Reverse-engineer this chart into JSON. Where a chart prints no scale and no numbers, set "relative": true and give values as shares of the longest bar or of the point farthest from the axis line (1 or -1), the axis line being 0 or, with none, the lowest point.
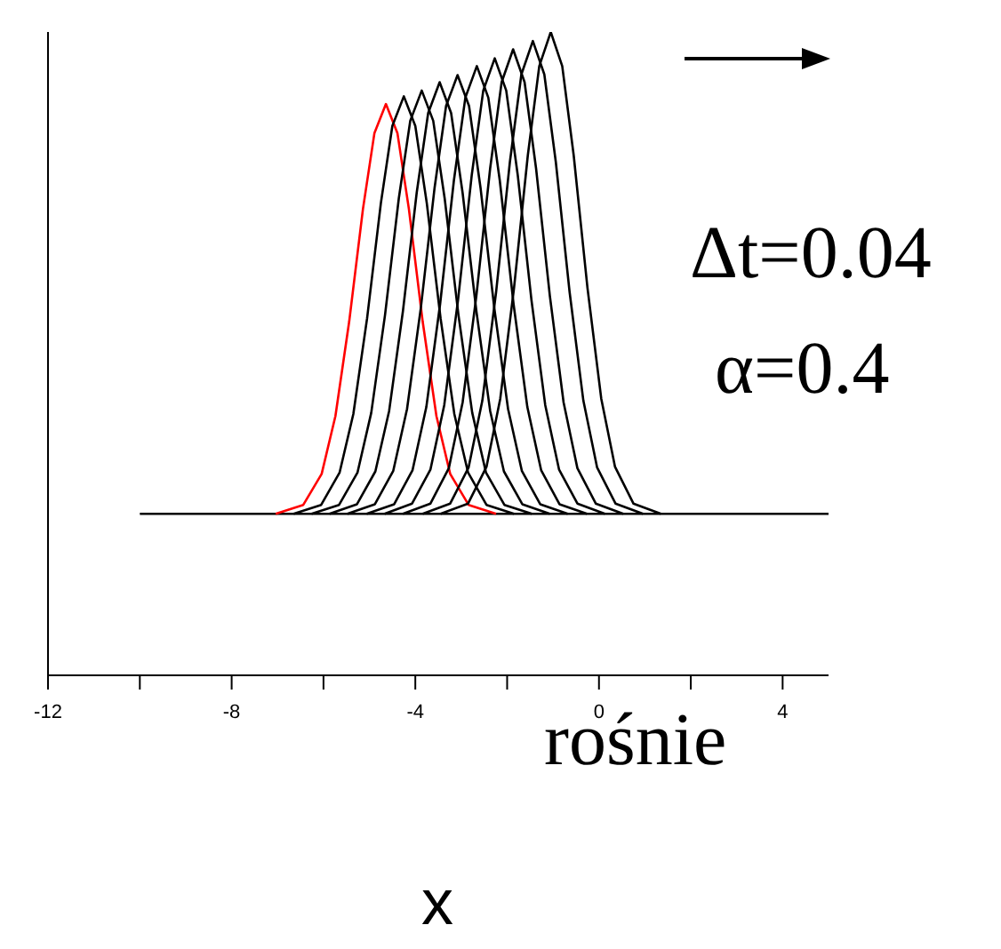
{
  "chart_data": {
    "type": "line",
    "relative": true,
    "xlabel": "x",
    "xlim": [
      -12,
      5
    ],
    "xticks": [
      -12,
      {
        "value": -10,
        "label": null
      },
      -8,
      {
        "value": -6,
        "label": null
      },
      -4,
      {
        "value": -2,
        "label": null
      },
      0,
      {
        "value": 2,
        "label": null
      },
      4
    ],
    "tick_labels": "x",
    "grid": false,
    "legend": false,
    "marker": "none",
    "line_style": "solid",
    "annotations": [
      "Δt=0.04",
      "α=0.4",
      "rośnie"
    ],
    "series": [
      {
        "color": "#000000",
        "x": [
          -10,
          5
        ],
        "values": [
          0.251,
          0.251
        ]
      },
      {
        "color": "#ff0000",
        "x": [
          -7.04,
          -6.44,
          -6.04,
          -5.74,
          -5.44,
          -5.14,
          -4.89,
          -4.64,
          -4.39,
          -4.14,
          -3.84,
          -3.54,
          -3.24,
          -2.84,
          -2.24
        ],
        "values": [
          0.251,
          0.265,
          0.313,
          0.403,
          0.55,
          0.725,
          0.843,
          0.888,
          0.843,
          0.725,
          0.55,
          0.403,
          0.313,
          0.265,
          0.251
        ]
      },
      {
        "color": "#000000",
        "x": [
          -6.65,
          -6.05,
          -5.65,
          -5.35,
          -5.05,
          -4.75,
          -4.5,
          -4.25,
          -4,
          -3.75,
          -3.45,
          -3.15,
          -2.85,
          -2.45,
          -1.85
        ],
        "values": [
          0.251,
          0.265,
          0.315,
          0.406,
          0.555,
          0.734,
          0.854,
          0.9,
          0.854,
          0.734,
          0.555,
          0.406,
          0.315,
          0.265,
          0.251
        ]
      },
      {
        "color": "#000000",
        "x": [
          -6.26,
          -5.66,
          -5.26,
          -4.96,
          -4.66,
          -4.36,
          -4.11,
          -3.86,
          -3.61,
          -3.36,
          -3.06,
          -2.76,
          -2.46,
          -2.06,
          -1.46
        ],
        "values": [
          0.251,
          0.265,
          0.315,
          0.408,
          0.56,
          0.741,
          0.862,
          0.909,
          0.862,
          0.741,
          0.56,
          0.408,
          0.315,
          0.265,
          0.251
        ]
      },
      {
        "color": "#000000",
        "x": [
          -5.87,
          -5.27,
          -4.87,
          -4.57,
          -4.27,
          -3.97,
          -3.72,
          -3.47,
          -3.22,
          -2.97,
          -2.67,
          -2.37,
          -2.07,
          -1.67,
          -1.07
        ],
        "values": [
          0.251,
          0.266,
          0.317,
          0.411,
          0.566,
          0.75,
          0.874,
          0.922,
          0.874,
          0.75,
          0.566,
          0.411,
          0.317,
          0.266,
          0.251
        ]
      },
      {
        "color": "#000000",
        "x": [
          -5.48,
          -4.88,
          -4.48,
          -4.18,
          -3.88,
          -3.58,
          -3.33,
          -3.08,
          -2.83,
          -2.58,
          -2.28,
          -1.98,
          -1.68,
          -1.28,
          -0.68
        ],
        "values": [
          0.251,
          0.266,
          0.318,
          0.414,
          0.571,
          0.758,
          0.885,
          0.933,
          0.885,
          0.758,
          0.571,
          0.414,
          0.318,
          0.266,
          0.251
        ]
      },
      {
        "color": "#000000",
        "x": [
          -5.06,
          -4.46,
          -4.06,
          -3.76,
          -3.46,
          -3.16,
          -2.91,
          -2.66,
          -2.41,
          -2.16,
          -1.86,
          -1.56,
          -1.26,
          -0.86,
          -0.26
        ],
        "values": [
          0.251,
          0.266,
          0.319,
          0.417,
          0.577,
          0.769,
          0.898,
          0.947,
          0.898,
          0.769,
          0.577,
          0.417,
          0.319,
          0.266,
          0.251
        ]
      },
      {
        "color": "#000000",
        "x": [
          -4.67,
          -4.07,
          -3.67,
          -3.37,
          -3.07,
          -2.77,
          -2.52,
          -2.27,
          -2.02,
          -1.77,
          -1.47,
          -1.17,
          -0.87,
          -0.47,
          0.13
        ],
        "values": [
          0.251,
          0.267,
          0.32,
          0.42,
          0.583,
          0.778,
          0.909,
          0.959,
          0.909,
          0.778,
          0.583,
          0.42,
          0.32,
          0.267,
          0.251
        ]
      },
      {
        "color": "#000000",
        "x": [
          -4.27,
          -3.67,
          -3.27,
          -2.97,
          -2.67,
          -2.37,
          -2.12,
          -1.87,
          -1.62,
          -1.37,
          -1.07,
          -0.77,
          -0.47,
          -0.07,
          0.53
        ],
        "values": [
          0.251,
          0.267,
          0.322,
          0.424,
          0.59,
          0.788,
          0.922,
          0.973,
          0.922,
          0.788,
          0.59,
          0.424,
          0.322,
          0.267,
          0.251
        ]
      },
      {
        "color": "#000000",
        "x": [
          -3.84,
          -3.24,
          -2.84,
          -2.54,
          -2.24,
          -1.94,
          -1.69,
          -1.44,
          -1.19,
          -0.94,
          -0.64,
          -0.34,
          -0.04,
          0.36,
          0.96
        ],
        "values": [
          0.251,
          0.267,
          0.323,
          0.427,
          0.596,
          0.798,
          0.934,
          0.986,
          0.934,
          0.798,
          0.596,
          0.427,
          0.323,
          0.267,
          0.251
        ]
      },
      {
        "color": "#000000",
        "x": [
          -3.45,
          -2.85,
          -2.45,
          -2.15,
          -1.85,
          -1.55,
          -1.3,
          -1.05,
          -0.8,
          -0.55,
          -0.25,
          0.05,
          0.35,
          0.75,
          1.35
        ],
        "values": [
          0.251,
          0.267,
          0.324,
          0.43,
          0.602,
          0.808,
          0.947,
          1.0,
          0.947,
          0.808,
          0.602,
          0.43,
          0.324,
          0.267,
          0.251
        ]
      }
    ]
  }
}
